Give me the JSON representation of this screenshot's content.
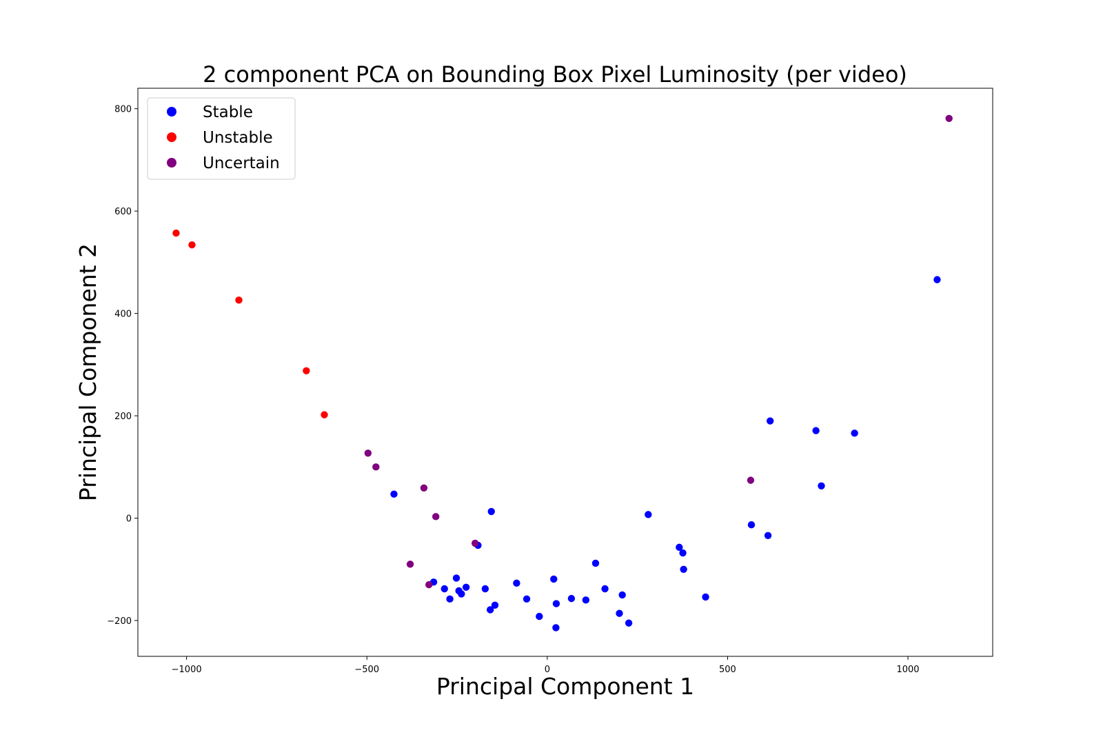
{
  "chart_data": {
    "type": "scatter",
    "title": "2 component PCA on Bounding Box Pixel Luminosity (per video)",
    "xlabel": "Principal Component 1",
    "ylabel": "Principal Component 2",
    "xlim": [
      -1135,
      1235
    ],
    "ylim": [
      -270,
      840
    ],
    "xticks": [
      -1000,
      -500,
      0,
      500,
      1000
    ],
    "yticks": [
      -200,
      0,
      200,
      400,
      600,
      800
    ],
    "grid": false,
    "legend_position": "top-left",
    "series": [
      {
        "name": "Stable",
        "color": "#0000ff",
        "points": [
          [
            -425,
            47
          ],
          [
            -155,
            13
          ],
          [
            -192,
            -53
          ],
          [
            -315,
            -125
          ],
          [
            -285,
            -138
          ],
          [
            -270,
            -158
          ],
          [
            -252,
            -117
          ],
          [
            -245,
            -142
          ],
          [
            -238,
            -148
          ],
          [
            -225,
            -135
          ],
          [
            -172,
            -138
          ],
          [
            -158,
            -179
          ],
          [
            -145,
            -170
          ],
          [
            -85,
            -127
          ],
          [
            -57,
            -158
          ],
          [
            -22,
            -192
          ],
          [
            18,
            -119
          ],
          [
            25,
            -167
          ],
          [
            24,
            -214
          ],
          [
            67,
            -157
          ],
          [
            107,
            -160
          ],
          [
            134,
            -88
          ],
          [
            160,
            -138
          ],
          [
            200,
            -186
          ],
          [
            208,
            -150
          ],
          [
            226,
            -205
          ],
          [
            280,
            7
          ],
          [
            366,
            -57
          ],
          [
            376,
            -68
          ],
          [
            378,
            -100
          ],
          [
            439,
            -154
          ],
          [
            566,
            -13
          ],
          [
            612,
            -34
          ],
          [
            618,
            190
          ],
          [
            745,
            171
          ],
          [
            760,
            63
          ],
          [
            852,
            166
          ],
          [
            1081,
            466
          ]
        ]
      },
      {
        "name": "Unstable",
        "color": "#ff0000",
        "points": [
          [
            -1029,
            557
          ],
          [
            -985,
            534
          ],
          [
            -855,
            426
          ],
          [
            -668,
            288
          ],
          [
            -618,
            202
          ]
        ]
      },
      {
        "name": "Uncertain",
        "color": "#800080",
        "points": [
          [
            -497,
            127
          ],
          [
            -475,
            100
          ],
          [
            -342,
            59
          ],
          [
            -309,
            3
          ],
          [
            -200,
            -49
          ],
          [
            -380,
            -90
          ],
          [
            -328,
            -130
          ],
          [
            564,
            74
          ],
          [
            1114,
            781
          ]
        ]
      }
    ]
  }
}
